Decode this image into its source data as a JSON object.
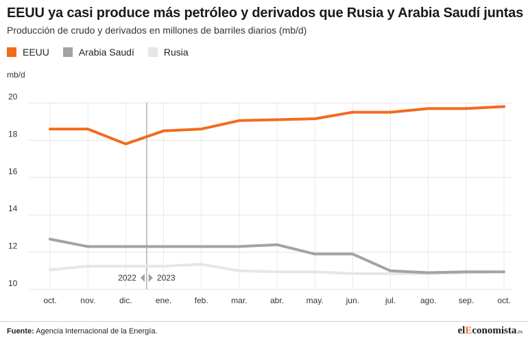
{
  "header": {
    "title": "EEUU ya casi produce más petróleo y derivados que Rusia y Arabia Saudí juntas",
    "subtitle": "Producción de crudo y derivados en millones de barriles diarios (mb/d)"
  },
  "footer": {
    "source_label": "Fuente:",
    "source_text": " Agencia Internacional de la Energía.",
    "brand_prefix": "el",
    "brand_accent": "E",
    "brand_rest": "conomista",
    "brand_suffix": ".es"
  },
  "chart_data": {
    "type": "line",
    "title": "EEUU ya casi produce más petróleo y derivados que Rusia y Arabia Saudí juntas",
    "subtitle": "Producción de crudo y derivados en millones de barriles diarios (mb/d)",
    "ylabel": "mb/d",
    "xlabel": "",
    "ylim": [
      10,
      20
    ],
    "yticks": [
      10,
      12,
      14,
      16,
      18,
      20
    ],
    "categories": [
      "oct.",
      "nov.",
      "dic.",
      "ene.",
      "feb.",
      "mar.",
      "abr.",
      "may.",
      "jun.",
      "jul.",
      "ago.",
      "sep.",
      "oct."
    ],
    "grid": true,
    "legend_position": "top-left",
    "year_divider": {
      "after_index": 2,
      "left_label": "2022",
      "right_label": "2023"
    },
    "series": [
      {
        "name": "EEUU",
        "color": "#f26b1d",
        "values": [
          18.6,
          18.6,
          17.8,
          18.5,
          18.6,
          19.05,
          19.1,
          19.15,
          19.5,
          19.5,
          19.7,
          19.7,
          19.8
        ]
      },
      {
        "name": "Arabia Saudí",
        "color": "#a3a3a3",
        "values": [
          12.7,
          12.3,
          12.3,
          12.3,
          12.3,
          12.3,
          12.4,
          11.9,
          11.9,
          11.0,
          10.9,
          10.95,
          10.95
        ]
      },
      {
        "name": "Rusia",
        "color": "#e6e6e6",
        "values": [
          11.05,
          11.25,
          11.25,
          11.25,
          11.35,
          11.0,
          10.95,
          10.95,
          10.85,
          10.85,
          10.85,
          10.9,
          10.95
        ]
      }
    ]
  }
}
